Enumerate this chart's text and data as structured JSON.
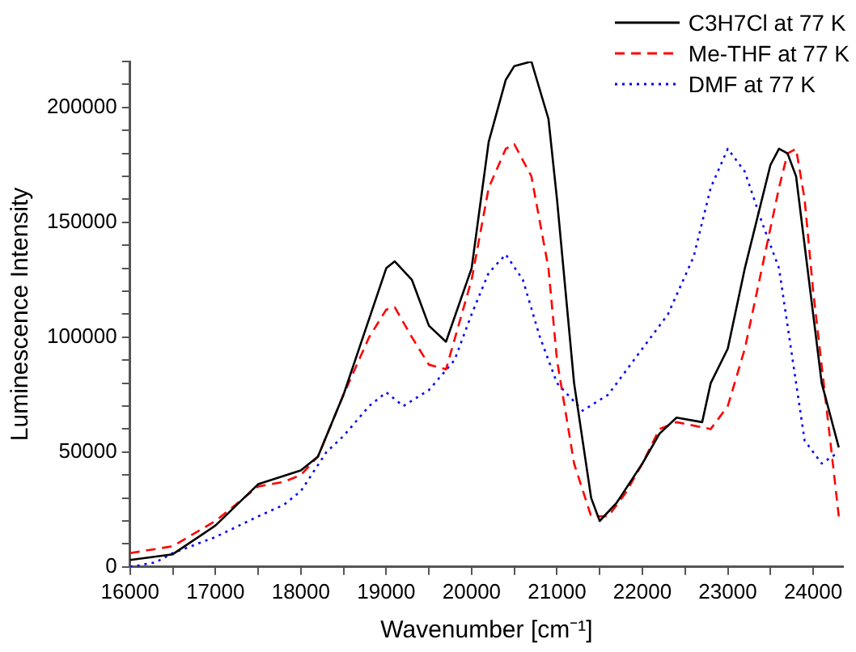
{
  "chart_data": {
    "type": "line",
    "xlabel": "Wavenumber [cm⁻¹]",
    "ylabel": "Luminescence Intensity",
    "xlim": [
      16000,
      24350
    ],
    "ylim": [
      0,
      220000
    ],
    "xticks": [
      16000,
      {
        "value": 16500,
        "label": null
      },
      17000,
      {
        "value": 17500,
        "label": null
      },
      18000,
      {
        "value": 18500,
        "label": null
      },
      19000,
      {
        "value": 19500,
        "label": null
      },
      20000,
      {
        "value": 20500,
        "label": null
      },
      21000,
      {
        "value": 21500,
        "label": null
      },
      22000,
      {
        "value": 22500,
        "label": null
      },
      23000,
      {
        "value": 23500,
        "label": null
      },
      24000
    ],
    "yticks": [
      0,
      {
        "value": 10000,
        "label": null
      },
      {
        "value": 20000,
        "label": null
      },
      {
        "value": 30000,
        "label": null
      },
      {
        "value": 40000,
        "label": null
      },
      50000,
      {
        "value": 60000,
        "label": null
      },
      {
        "value": 70000,
        "label": null
      },
      {
        "value": 80000,
        "label": null
      },
      {
        "value": 90000,
        "label": null
      },
      100000,
      {
        "value": 110000,
        "label": null
      },
      {
        "value": 120000,
        "label": null
      },
      {
        "value": 130000,
        "label": null
      },
      {
        "value": 140000,
        "label": null
      },
      150000,
      {
        "value": 160000,
        "label": null
      },
      {
        "value": 170000,
        "label": null
      },
      {
        "value": 180000,
        "label": null
      },
      {
        "value": 190000,
        "label": null
      },
      200000,
      {
        "value": 210000,
        "label": null
      },
      {
        "value": 220000,
        "label": null
      }
    ],
    "grid": false,
    "legend": "top right",
    "marker": "none",
    "series": [
      {
        "name": "C3H7Cl at 77 K",
        "color": "#000000",
        "line_style": "solid",
        "x": [
          16000,
          16500,
          17000,
          17500,
          18000,
          18200,
          18500,
          18800,
          19000,
          19100,
          19300,
          19500,
          19700,
          20000,
          20200,
          20400,
          20500,
          20700,
          20900,
          21000,
          21200,
          21400,
          21500,
          21700,
          22000,
          22200,
          22400,
          22700,
          22800,
          23000,
          23200,
          23400,
          23500,
          23600,
          23700,
          23800,
          24000,
          24100,
          24300
        ],
        "values": [
          3000,
          5500,
          18000,
          36000,
          42000,
          48000,
          75000,
          108000,
          130000,
          133000,
          125000,
          105000,
          98000,
          130000,
          185000,
          212000,
          218000,
          220000,
          195000,
          160000,
          80000,
          30000,
          20000,
          28000,
          45000,
          58000,
          65000,
          63000,
          80000,
          95000,
          130000,
          160000,
          175000,
          182000,
          180000,
          170000,
          110000,
          80000,
          52000
        ]
      },
      {
        "name": "Me-THF at 77 K",
        "color": "#ff0000",
        "line_style": "dashed",
        "x": [
          16000,
          16500,
          17000,
          17500,
          17800,
          18000,
          18200,
          18500,
          18800,
          19000,
          19100,
          19300,
          19500,
          19700,
          20000,
          20200,
          20400,
          20500,
          20700,
          20900,
          21000,
          21200,
          21400,
          21600,
          21800,
          22000,
          22200,
          22400,
          22800,
          23000,
          23200,
          23400,
          23600,
          23700,
          23800,
          23900,
          24000,
          24200,
          24300
        ],
        "values": [
          6000,
          9000,
          20000,
          35000,
          37000,
          40000,
          48000,
          75000,
          100000,
          112000,
          113000,
          100000,
          88000,
          86000,
          125000,
          165000,
          182000,
          184000,
          170000,
          130000,
          90000,
          45000,
          22000,
          22000,
          32000,
          45000,
          60000,
          63000,
          60000,
          70000,
          95000,
          130000,
          165000,
          180000,
          182000,
          160000,
          120000,
          55000,
          22000
        ]
      },
      {
        "name": "DMF at 77 K",
        "color": "#0000ff",
        "line_style": "dotted",
        "x": [
          16000,
          16300,
          16500,
          17000,
          17500,
          17800,
          18000,
          18300,
          18500,
          18800,
          19000,
          19200,
          19500,
          19800,
          20000,
          20200,
          20400,
          20600,
          20800,
          21000,
          21300,
          21600,
          22000,
          22300,
          22600,
          22800,
          23000,
          23200,
          23400,
          23600,
          23700,
          23900,
          24100,
          24300
        ],
        "values": [
          0,
          2000,
          6000,
          13000,
          22000,
          27000,
          33000,
          50000,
          57000,
          70000,
          76000,
          70000,
          77000,
          90000,
          110000,
          128000,
          136000,
          125000,
          100000,
          80000,
          68000,
          75000,
          95000,
          110000,
          135000,
          165000,
          182000,
          172000,
          150000,
          130000,
          105000,
          55000,
          45000,
          50000
        ]
      }
    ]
  }
}
